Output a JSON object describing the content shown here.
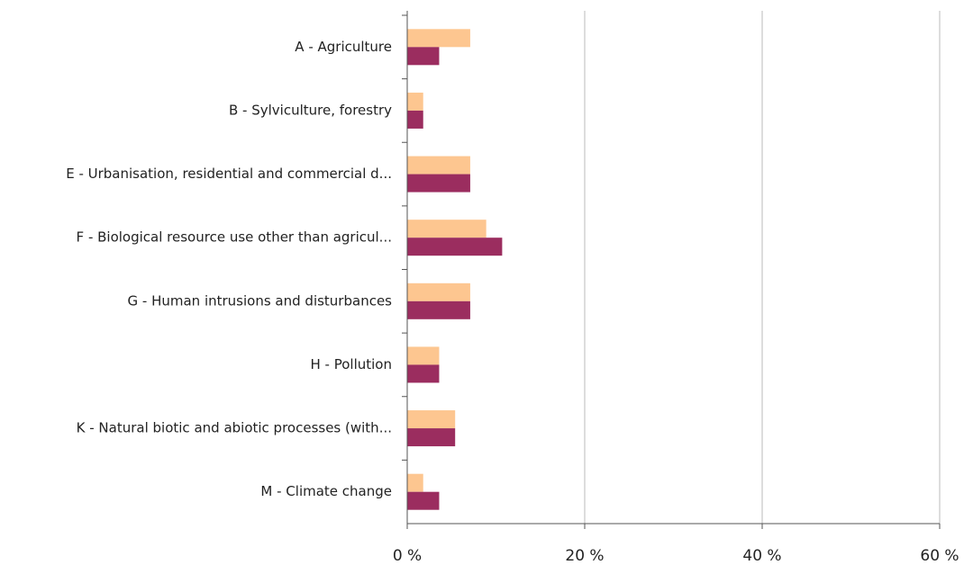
{
  "chart_data": {
    "type": "bar",
    "orientation": "horizontal",
    "categories": [
      "A - Agriculture",
      "B - Sylviculture, forestry",
      "E - Urbanisation, residential and commercial d...",
      "F - Biological resource use other than agricul...",
      "G - Human intrusions and disturbances",
      "H - Pollution",
      "K - Natural biotic and abiotic processes (with...",
      "M - Climate change"
    ],
    "series": [
      {
        "color": "#fdc690",
        "values": [
          7.1,
          1.8,
          7.1,
          8.9,
          7.1,
          3.6,
          5.4,
          1.8
        ]
      },
      {
        "color": "#9b2d5f",
        "values": [
          3.6,
          1.8,
          7.1,
          10.7,
          7.1,
          3.6,
          5.4,
          3.6
        ]
      }
    ],
    "xlim": [
      0,
      60
    ],
    "xticks": [
      {
        "value": 0,
        "label": "0 %"
      },
      {
        "value": 20,
        "label": "20 %"
      },
      {
        "value": 40,
        "label": "40 %"
      },
      {
        "value": 60,
        "label": "60 %"
      }
    ],
    "grid": true
  }
}
